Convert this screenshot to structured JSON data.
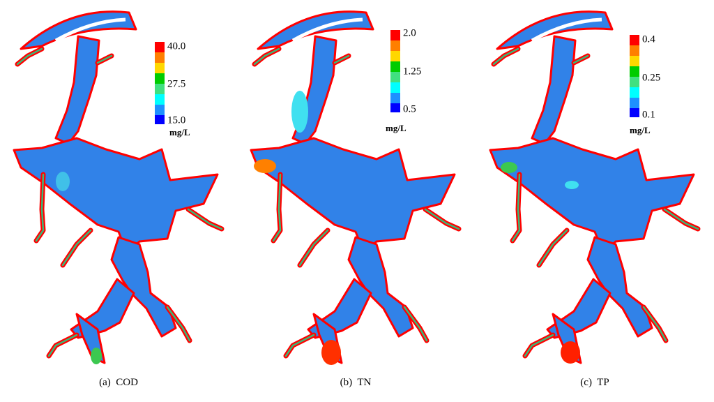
{
  "panels": [
    {
      "caption": "(a)  COD",
      "colorbar": {
        "ticks": [
          "40.0",
          "27.5",
          "15.0"
        ],
        "unit": "mg/L"
      }
    },
    {
      "caption": "(b)  TN",
      "colorbar": {
        "ticks": [
          "2.0",
          "1.25",
          "0.5"
        ],
        "unit": "mg/L"
      }
    },
    {
      "caption": "(c)  TP",
      "colorbar": {
        "ticks": [
          "0.4",
          "0.25",
          "0.1"
        ],
        "unit": "mg/L"
      }
    }
  ]
}
